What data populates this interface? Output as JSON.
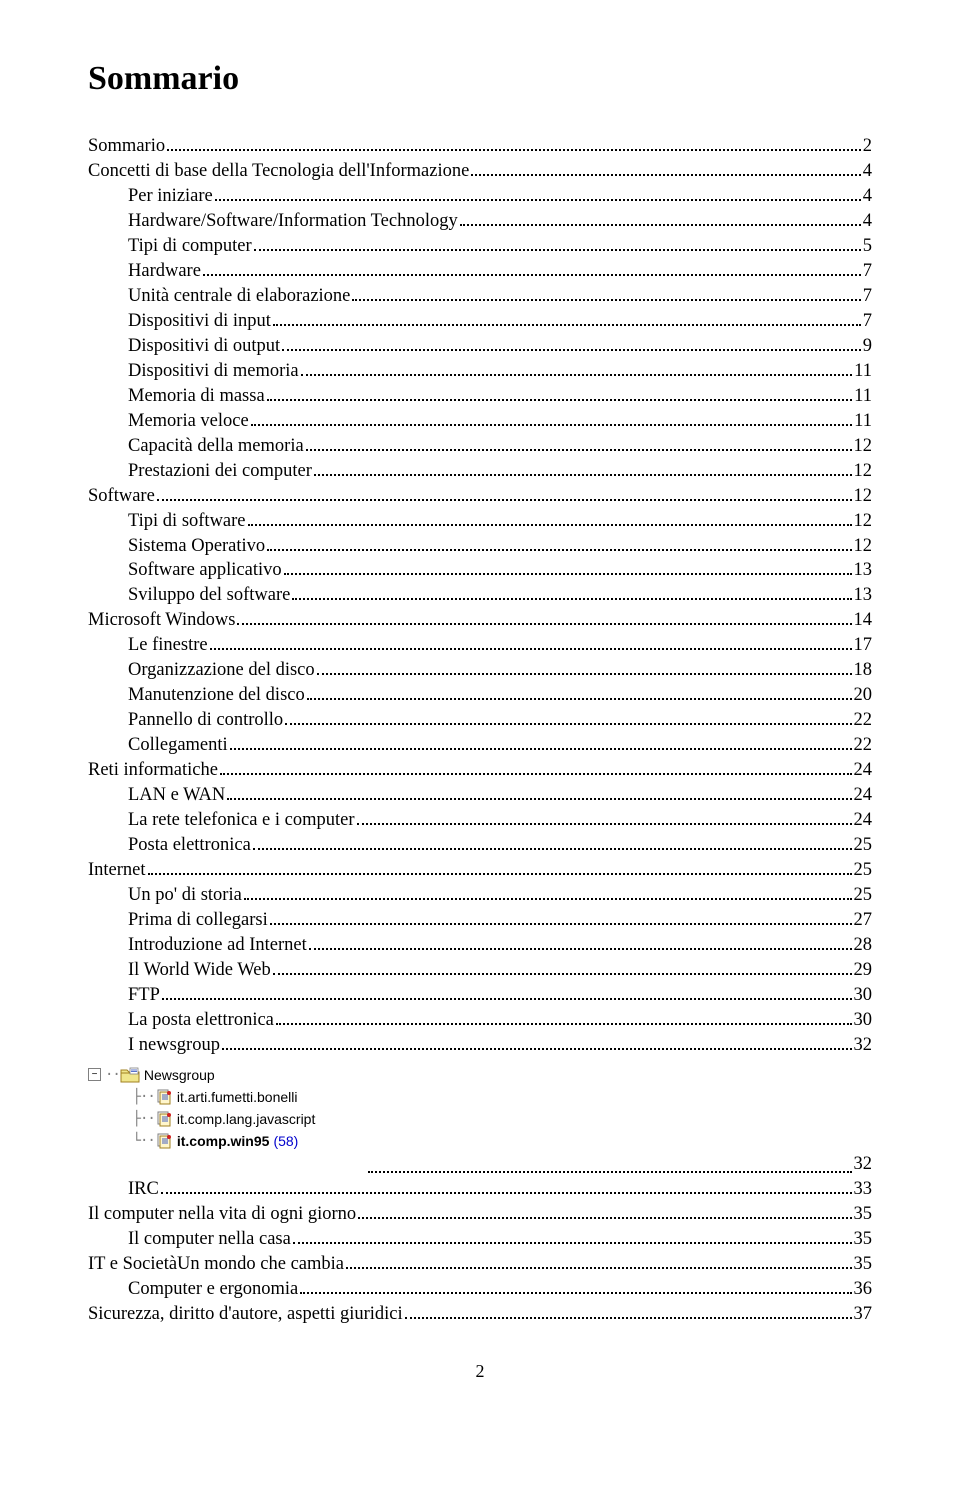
{
  "title": "Sommario",
  "page_number": "2",
  "toc": [
    {
      "level": 1,
      "label": "Sommario",
      "page": "2"
    },
    {
      "level": 1,
      "label": "Concetti di base della Tecnologia dell'Informazione",
      "page": "4"
    },
    {
      "level": 2,
      "label": "Per iniziare",
      "page": "4"
    },
    {
      "level": 2,
      "label": "Hardware/Software/Information Technology",
      "page": "4"
    },
    {
      "level": 2,
      "label": "Tipi di computer",
      "page": "5"
    },
    {
      "level": 2,
      "label": "Hardware",
      "page": "7"
    },
    {
      "level": 2,
      "label": "Unità centrale di elaborazione",
      "page": "7"
    },
    {
      "level": 2,
      "label": "Dispositivi di input",
      "page": "7"
    },
    {
      "level": 2,
      "label": "Dispositivi di output",
      "page": "9"
    },
    {
      "level": 2,
      "label": "Dispositivi di memoria",
      "page": "11"
    },
    {
      "level": 2,
      "label": "Memoria di massa",
      "page": "11"
    },
    {
      "level": 2,
      "label": "Memoria veloce",
      "page": "11"
    },
    {
      "level": 2,
      "label": "Capacità della memoria",
      "page": "12"
    },
    {
      "level": 2,
      "label": "Prestazioni dei computer",
      "page": "12"
    },
    {
      "level": 1,
      "label": "Software",
      "page": "12"
    },
    {
      "level": 2,
      "label": "Tipi di software",
      "page": "12"
    },
    {
      "level": 2,
      "label": "Sistema Operativo",
      "page": "12"
    },
    {
      "level": 2,
      "label": "Software applicativo",
      "page": "13"
    },
    {
      "level": 2,
      "label": "Sviluppo del software",
      "page": "13"
    },
    {
      "level": 1,
      "label": "Microsoft Windows",
      "page": "14"
    },
    {
      "level": 2,
      "label": "Le finestre",
      "page": "17"
    },
    {
      "level": 2,
      "label": "Organizzazione del disco",
      "page": "18"
    },
    {
      "level": 2,
      "label": "Manutenzione del disco",
      "page": "20"
    },
    {
      "level": 2,
      "label": "Pannello di controllo",
      "page": "22"
    },
    {
      "level": 2,
      "label": "Collegamenti",
      "page": "22"
    },
    {
      "level": 1,
      "label": "Reti informatiche",
      "page": "24"
    },
    {
      "level": 2,
      "label": "LAN e WAN",
      "page": "24"
    },
    {
      "level": 2,
      "label": "La rete telefonica e i computer",
      "page": "24"
    },
    {
      "level": 2,
      "label": "Posta elettronica",
      "page": "25"
    },
    {
      "level": 1,
      "label": "Internet",
      "page": "25"
    },
    {
      "level": 2,
      "label": "Un po' di storia",
      "page": "25"
    },
    {
      "level": 2,
      "label": "Prima di collegarsi",
      "page": "27"
    },
    {
      "level": 2,
      "label": "Introduzione ad Internet",
      "page": "28"
    },
    {
      "level": 2,
      "label": "Il World Wide Web",
      "page": "29"
    },
    {
      "level": 2,
      "label": "FTP",
      "page": "30"
    },
    {
      "level": 2,
      "label": "La posta elettronica",
      "page": "30"
    },
    {
      "level": 2,
      "label": "I newsgroup",
      "page": "32"
    }
  ],
  "tree": {
    "root_label": "Newsgroup",
    "items": [
      {
        "icon": "doc",
        "label": "it.arti.fumetti.bonelli",
        "bold": false
      },
      {
        "icon": "doc",
        "label": "it.comp.lang.javascript",
        "bold": false
      },
      {
        "icon": "doc",
        "label": "it.comp.win95",
        "bold": true,
        "count": "(58)"
      }
    ]
  },
  "img_entry_page": "32",
  "toc_after": [
    {
      "level": 2,
      "label": "IRC",
      "page": "33"
    },
    {
      "level": 1,
      "label": "Il computer nella vita di ogni giorno",
      "page": "35"
    },
    {
      "level": 2,
      "label": "Il computer nella casa",
      "page": "35"
    },
    {
      "level": 1,
      "label": "IT e SocietàUn mondo che cambia",
      "page": "35"
    },
    {
      "level": 2,
      "label": "Computer e ergonomia",
      "page": "36"
    },
    {
      "level": 1,
      "label": "Sicurezza, diritto d'autore, aspetti giuridici",
      "page": "37"
    }
  ]
}
